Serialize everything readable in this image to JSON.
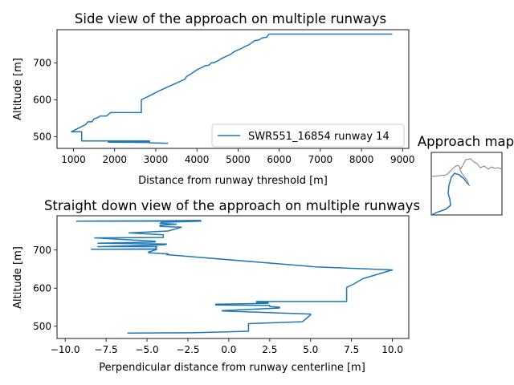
{
  "chart_data": [
    {
      "type": "line",
      "title": "Side view of the approach on multiple runways",
      "xlabel": "Distance from runway threshold [m]",
      "ylabel": "Altitude [m]",
      "xlim": [
        600,
        9150
      ],
      "ylim": [
        468,
        790
      ],
      "xticks": [
        1000,
        2000,
        3000,
        4000,
        5000,
        6000,
        7000,
        8000,
        9000
      ],
      "xtick_labels": [
        "1000",
        "2000",
        "3000",
        "4000",
        "5000",
        "6000",
        "7000",
        "8000",
        "9000"
      ],
      "yticks": [
        500,
        600,
        700
      ],
      "ytick_labels": [
        "500",
        "600",
        "700"
      ],
      "legend_position": "lower right",
      "series": [
        {
          "name": "SWR551_16854 runway 14",
          "color": "#1f77b4",
          "x": [
            3300,
            2850,
            2850,
            1850,
            1850,
            2850,
            2850,
            1200,
            1200,
            950,
            1300,
            1350,
            1450,
            1500,
            1600,
            1650,
            1800,
            1850,
            1900,
            2000,
            2650,
            2650,
            2700,
            2800,
            3100,
            3500,
            3700,
            3750,
            3850,
            4000,
            4200,
            4300,
            4350,
            4400,
            4500,
            4600,
            4700,
            4800,
            4900,
            5100,
            5200,
            5250,
            5400,
            5500,
            5600,
            5700,
            5750,
            6000,
            8750
          ],
          "y": [
            482,
            483,
            484,
            485,
            487,
            487,
            488,
            488,
            513,
            513,
            533,
            540,
            540,
            548,
            552,
            556,
            556,
            560,
            565,
            565,
            565,
            600,
            603,
            608,
            625,
            645,
            655,
            663,
            670,
            681,
            692,
            694,
            700,
            700,
            705,
            712,
            717,
            722,
            730,
            740,
            746,
            748,
            760,
            762,
            768,
            770,
            778,
            778,
            778
          ]
        }
      ]
    },
    {
      "type": "line",
      "title": "Straight down view of the approach on multiple runways",
      "xlabel": "Perpendicular distance from runway centerline [m]",
      "ylabel": "Altitude [m]",
      "xlim": [
        -10.5,
        11.0
      ],
      "ylim": [
        468,
        790
      ],
      "xticks": [
        -10.0,
        -7.5,
        -5.0,
        -2.5,
        0.0,
        2.5,
        5.0,
        7.5,
        10.0
      ],
      "xtick_labels": [
        "−10.0",
        "−7.5",
        "−5.0",
        "−2.5",
        "0.0",
        "2.5",
        "5.0",
        "7.5",
        "10.0"
      ],
      "yticks": [
        500,
        600,
        700
      ],
      "ytick_labels": [
        "500",
        "600",
        "700"
      ],
      "series": [
        {
          "name": "SWR551_16854 runway 14",
          "color": "#1f77b4",
          "x": [
            -6.2,
            -2.3,
            1.2,
            1.2,
            4.5,
            5.0,
            5.0,
            -0.4,
            -0.4,
            3.1,
            3.1,
            2.5,
            2.5,
            -0.8,
            -0.8,
            2.4,
            2.4,
            1.7,
            1.7,
            7.2,
            7.2,
            7.6,
            8.2,
            10.0,
            5.3,
            -3.8,
            -3.7,
            -4.9,
            -4.9,
            -4.5,
            -4.4,
            -8.4,
            -4.5,
            -4.4,
            -8.0,
            -3.9,
            -3.8,
            -8.0,
            -4.5,
            -4.5,
            -8.2,
            -4.0,
            -4.0,
            -6.1,
            -3.7,
            -2.9,
            -4.2,
            -4.2,
            -3.2,
            -4.2,
            -4.1,
            -1.7,
            -9.3,
            -4.2,
            -1.7
          ],
          "y": [
            482,
            483,
            487,
            507,
            512,
            530,
            532,
            540,
            541,
            548,
            550,
            552,
            555,
            556,
            558,
            560,
            562,
            562,
            565,
            565,
            602,
            610,
            625,
            648,
            656,
            688,
            690,
            693,
            695,
            700,
            702,
            702,
            703,
            709,
            709,
            714,
            716,
            718,
            721,
            723,
            732,
            733,
            740,
            745,
            750,
            760,
            762,
            765,
            768,
            770,
            773,
            776,
            776,
            777,
            778
          ]
        }
      ]
    },
    {
      "type": "map",
      "title": "Approach map"
    }
  ]
}
